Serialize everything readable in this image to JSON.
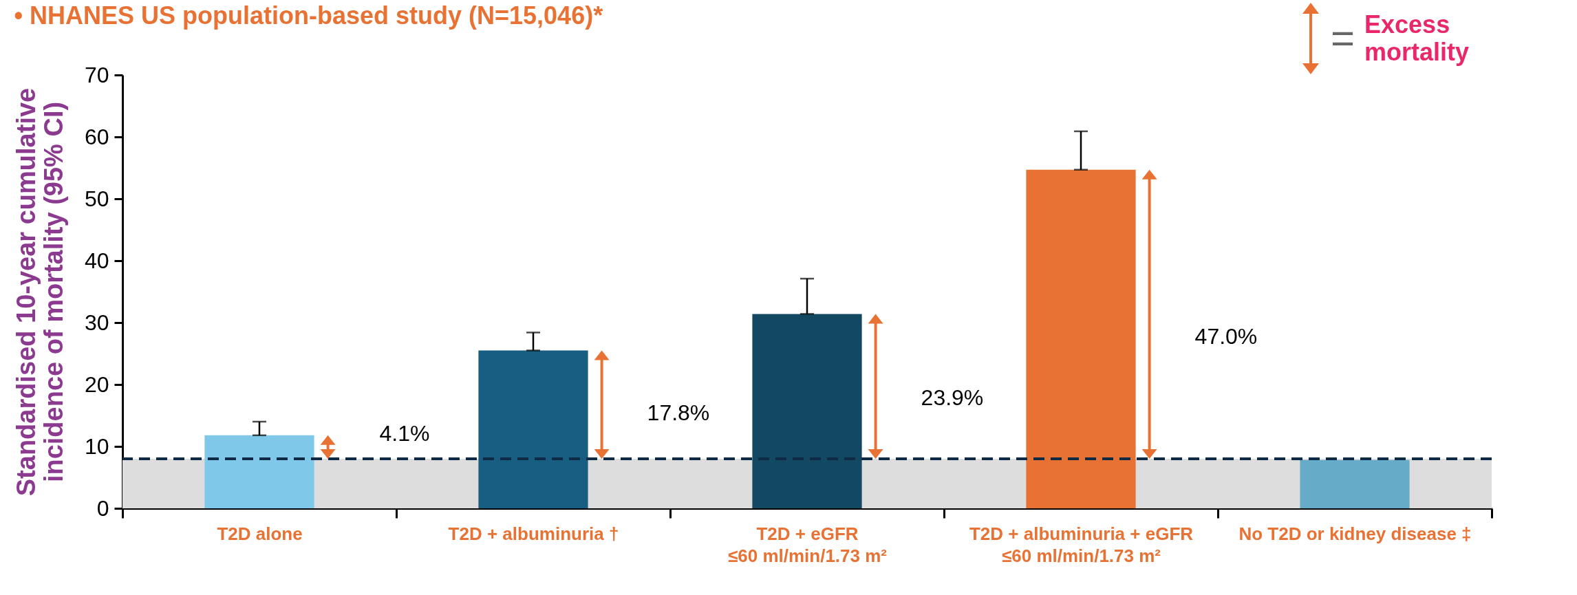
{
  "chart_data": {
    "type": "bar",
    "title": "• NHANES US population-based study (N=15,046)*",
    "ylabel": "Standardised 10-year cumulative incidence of mortality (95% CI)",
    "categories": [
      "T2D alone",
      "T2D + albuminuria †",
      "T2D + eGFR ≤60 ml/min/1.73 m²",
      "T2D + albuminuria + eGFR ≤60 ml/min/1.73 m²",
      "No T2D or kidney disease ‡"
    ],
    "values": [
      11.8,
      25.5,
      31.4,
      54.7,
      7.8
    ],
    "colors": [
      "#7fc8ea",
      "#175e82",
      "#134862",
      "#e87233",
      "#66acc9"
    ],
    "errors": [
      [
        11.8,
        14.0
      ],
      [
        25.5,
        28.4
      ],
      [
        31.4,
        37.1
      ],
      [
        54.7,
        60.9
      ],
      null
    ],
    "ylim": [
      0,
      70
    ],
    "yticks": [
      0,
      10,
      20,
      30,
      40,
      50,
      60,
      70
    ],
    "grid": false,
    "ref_lines": [
      {
        "axis": "y",
        "value": 8.0,
        "color": "#0f2a44",
        "line_style": "dashed"
      }
    ],
    "bands": [
      {
        "axis": "y",
        "from": 0,
        "to": 8.0,
        "color": "#dddddd"
      }
    ],
    "annotations": [
      "4.1%",
      "17.8%",
      "23.9%",
      "47.0%",
      "=",
      "Excess mortality"
    ]
  }
}
